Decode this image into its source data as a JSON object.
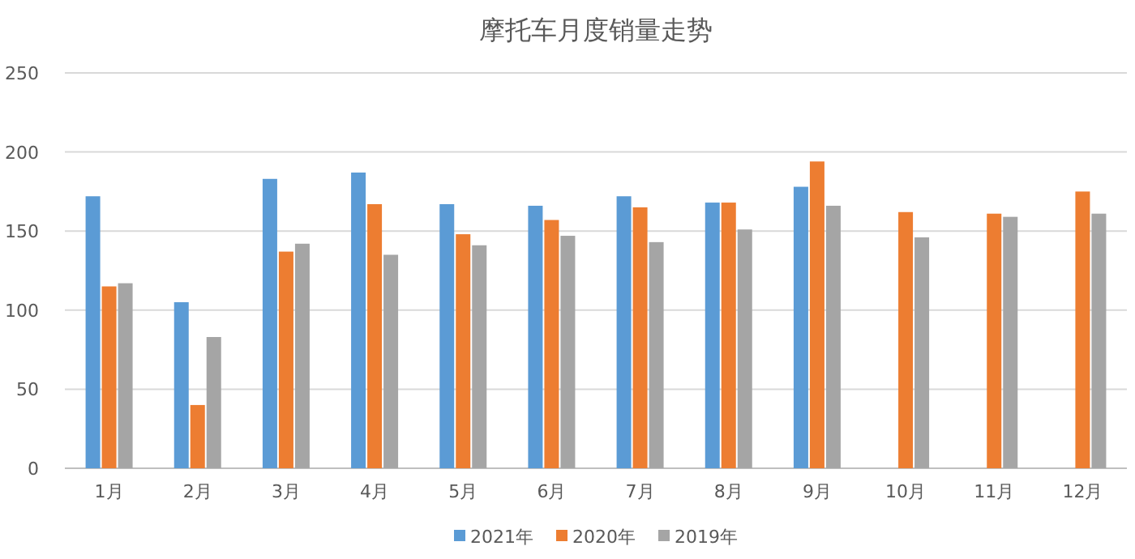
{
  "chart_data": {
    "type": "bar",
    "title": "摩托车月度销量走势",
    "categories": [
      "1月",
      "2月",
      "3月",
      "4月",
      "5月",
      "6月",
      "7月",
      "8月",
      "9月",
      "10月",
      "11月",
      "12月"
    ],
    "series": [
      {
        "name": "2021年",
        "color": "#5b9bd5",
        "values": [
          172,
          105,
          183,
          187,
          167,
          166,
          172,
          168,
          178,
          null,
          null,
          null
        ]
      },
      {
        "name": "2020年",
        "color": "#ed7d31",
        "values": [
          115,
          40,
          137,
          167,
          148,
          157,
          165,
          168,
          194,
          162,
          161,
          175
        ]
      },
      {
        "name": "2019年",
        "color": "#a5a5a5",
        "values": [
          117,
          83,
          142,
          135,
          141,
          147,
          143,
          151,
          166,
          146,
          159,
          161
        ]
      }
    ],
    "ylim": [
      0,
      250
    ],
    "yticks": [
      0,
      50,
      100,
      150,
      200,
      250
    ],
    "grid": "y",
    "legend": "bottom"
  }
}
